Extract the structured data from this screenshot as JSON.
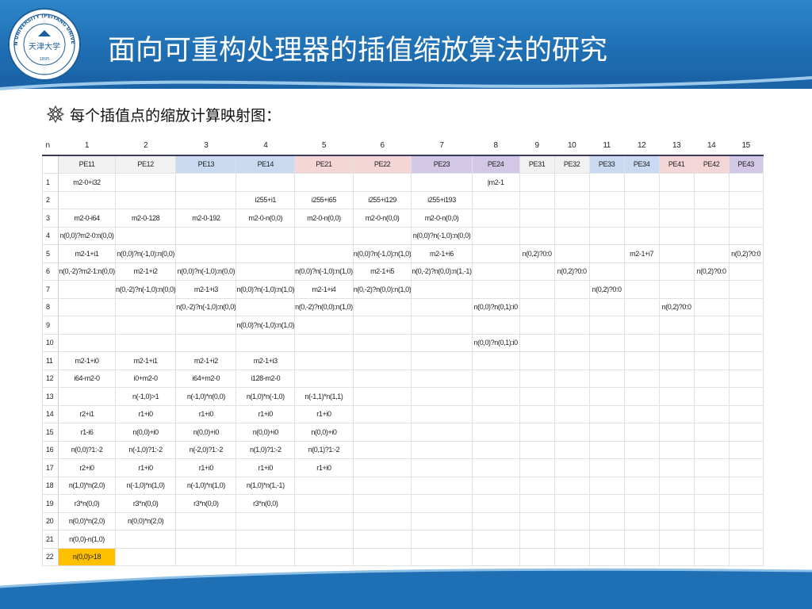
{
  "slide": {
    "title": "面向可重构处理器的插值缩放算法的研究",
    "subtitle": "每个插值点的缩放计算映射图：",
    "logo": {
      "icon": "university-seal-icon",
      "ring_text": "TIANJIN UNIVERSITY (PEIYANG UNIVERSITY)",
      "center_text": "天津大学",
      "year": "1895"
    },
    "bullet_icon": "flower-bullet-icon",
    "colors": {
      "header_blue": "#1f6fb4",
      "pe_gray": "#f1f1f1",
      "pe_blue": "#c9daf0",
      "pe_pink": "#f5d6d6",
      "pe_purple": "#d2c7e4",
      "highlight": "#ffc000"
    }
  },
  "sheet": {
    "n_label": "n",
    "column_numbers": [
      "1",
      "2",
      "3",
      "4",
      "5",
      "6",
      "7",
      "8",
      "9",
      "10",
      "11",
      "12",
      "13",
      "14",
      "15"
    ],
    "pe_headers": [
      {
        "label": "PE11",
        "group": "gray"
      },
      {
        "label": "PE12",
        "group": "gray"
      },
      {
        "label": "PE13",
        "group": "blue"
      },
      {
        "label": "PE14",
        "group": "blue"
      },
      {
        "label": "PE21",
        "group": "pink"
      },
      {
        "label": "PE22",
        "group": "pink"
      },
      {
        "label": "PE23",
        "group": "purple"
      },
      {
        "label": "PE24",
        "group": "purple"
      },
      {
        "label": "PE31",
        "group": "gray"
      },
      {
        "label": "PE32",
        "group": "gray"
      },
      {
        "label": "PE33",
        "group": "blue"
      },
      {
        "label": "PE34",
        "group": "blue"
      },
      {
        "label": "PE41",
        "group": "pink"
      },
      {
        "label": "PE42",
        "group": "pink"
      },
      {
        "label": "PE43",
        "group": "purple"
      }
    ],
    "rows": [
      {
        "n": "1",
        "cells": [
          "m2-0+i32",
          "",
          "",
          "",
          "",
          "",
          "",
          "|m2-1",
          "",
          "",
          "",
          "",
          "",
          "",
          ""
        ]
      },
      {
        "n": "2",
        "cells": [
          "",
          "",
          "",
          "i255+i1",
          "i255+i65",
          "i255+i129",
          "i255+i193",
          "",
          "",
          "",
          "",
          "",
          "",
          "",
          ""
        ]
      },
      {
        "n": "3",
        "cells": [
          "m2-0-i64",
          "m2-0-128",
          "m2-0-192",
          "m2-0-n(0,0)",
          "m2-0-n(0,0)",
          "m2-0-n(0,0)",
          "m2-0-n(0,0)",
          "",
          "",
          "",
          "",
          "",
          "",
          "",
          ""
        ]
      },
      {
        "n": "4",
        "cells": [
          "n(0,0)?m2-0:n(0,0)",
          "",
          "",
          "",
          "",
          "",
          "n(0,0)?n(-1,0):n(0,0)",
          "",
          "",
          "",
          "",
          "",
          "",
          "",
          ""
        ]
      },
      {
        "n": "5",
        "cells": [
          "m2-1+i1",
          "n(0,0)?n(-1,0):n(0,0)",
          "",
          "",
          "",
          "n(0,0)?n(-1,0):n(1,0)",
          "m2-1+i6",
          "",
          "n(0,2)?0:0",
          "",
          "",
          "m2-1+i7",
          "",
          "",
          "n(0,2)?0:0"
        ]
      },
      {
        "n": "6",
        "cells": [
          "n(0,-2)?m2-1:n(0,0)",
          "m2-1+i2",
          "n(0,0)?n(-1,0):n(0,0)",
          "",
          "n(0,0)?n(-1,0):n(1,0)",
          "m2-1+i5",
          "n(0,-2)?n(0,0):n(1,-1)",
          "",
          "",
          "n(0,2)?0:0",
          "",
          "",
          "",
          "n(0,2)?0:0",
          ""
        ]
      },
      {
        "n": "7",
        "cells": [
          "",
          "n(0,-2)?n(-1,0):n(0,0)",
          "m2-1+i3",
          "n(0,0)?n(-1,0):n(1,0)",
          "m2-1+i4",
          "n(0,-2)?n(0,0):n(1,0)",
          "",
          "",
          "",
          "",
          "n(0,2)?0:0",
          "",
          "",
          "",
          ""
        ]
      },
      {
        "n": "8",
        "cells": [
          "",
          "",
          "n(0,-2)?n(-1,0):n(0,0)",
          "",
          "n(0,-2)?n(0,0):n(1,0)",
          "",
          "",
          "n(0,0)?n(0,1):i0",
          "",
          "",
          "",
          "",
          "n(0,2)?0:0",
          "",
          ""
        ]
      },
      {
        "n": "9",
        "cells": [
          "",
          "",
          "",
          "n(0,0)?n(-1,0):n(1,0)",
          "",
          "",
          "",
          "",
          "",
          "",
          "",
          "",
          "",
          "",
          ""
        ]
      },
      {
        "n": "10",
        "cells": [
          "",
          "",
          "",
          "",
          "",
          "",
          "",
          "n(0,0)?n(0,1):i0",
          "",
          "",
          "",
          "",
          "",
          "",
          ""
        ]
      },
      {
        "n": "11",
        "cells": [
          "m2-1+i0",
          "m2-1+i1",
          "m2-1+i2",
          "m2-1+i3",
          "",
          "",
          "",
          "",
          "",
          "",
          "",
          "",
          "",
          "",
          ""
        ]
      },
      {
        "n": "12",
        "cells": [
          "i64-m2-0",
          "i0+m2-0",
          "i64+m2-0",
          "i128-m2-0",
          "",
          "",
          "",
          "",
          "",
          "",
          "",
          "",
          "",
          "",
          ""
        ]
      },
      {
        "n": "13",
        "cells": [
          "",
          "n(-1,0)>1",
          "n(-1,0)*n(0,0)",
          "n(1,0)*n(-1,0)",
          "n(-1,1)*n(1,1)",
          "",
          "",
          "",
          "",
          "",
          "",
          "",
          "",
          "",
          ""
        ]
      },
      {
        "n": "14",
        "cells": [
          "r2+i1",
          "r1+i0",
          "r1+i0",
          "r1+i0",
          "r1+i0",
          "",
          "",
          "",
          "",
          "",
          "",
          "",
          "",
          "",
          ""
        ]
      },
      {
        "n": "15",
        "cells": [
          "r1-i6",
          "n(0,0)+i0",
          "n(0,0)+i0",
          "n(0,0)+i0",
          "n(0,0)+i0",
          "",
          "",
          "",
          "",
          "",
          "",
          "",
          "",
          "",
          ""
        ]
      },
      {
        "n": "16",
        "cells": [
          "n(0,0)?1:-2",
          "n(-1,0)?1:-2",
          "n(-2,0)?1:-2",
          "n(1,0)?1:-2",
          "n(0,1)?1:-2",
          "",
          "",
          "",
          "",
          "",
          "",
          "",
          "",
          "",
          ""
        ]
      },
      {
        "n": "17",
        "cells": [
          "r2+i0",
          "r1+i0",
          "r1+i0",
          "r1+i0",
          "r1+i0",
          "",
          "",
          "",
          "",
          "",
          "",
          "",
          "",
          "",
          ""
        ]
      },
      {
        "n": "18",
        "cells": [
          "n(1,0)*n(2,0)",
          "n(-1,0)*n(1,0)",
          "n(-1,0)*n(1,0)",
          "n(1,0)*n(1,-1)",
          "",
          "",
          "",
          "",
          "",
          "",
          "",
          "",
          "",
          "",
          ""
        ]
      },
      {
        "n": "19",
        "cells": [
          "r3*n(0,0)",
          "r3*n(0,0)",
          "r3*n(0,0)",
          "r3*n(0,0)",
          "",
          "",
          "",
          "",
          "",
          "",
          "",
          "",
          "",
          "",
          ""
        ]
      },
      {
        "n": "20",
        "cells": [
          "n(0,0)*n(2,0)",
          "n(0,0)*n(2,0)",
          "",
          "",
          "",
          "",
          "",
          "",
          "",
          "",
          "",
          "",
          "",
          "",
          ""
        ]
      },
      {
        "n": "21",
        "cells": [
          "n(0,0)-n(1,0)",
          "",
          "",
          "",
          "",
          "",
          "",
          "",
          "",
          "",
          "",
          "",
          "",
          "",
          ""
        ]
      },
      {
        "n": "22",
        "cells": [
          "n(0,0)>18",
          "",
          "",
          "",
          "",
          "",
          "",
          "",
          "",
          "",
          "",
          "",
          "",
          "",
          ""
        ],
        "highlight": [
          0
        ]
      }
    ]
  }
}
